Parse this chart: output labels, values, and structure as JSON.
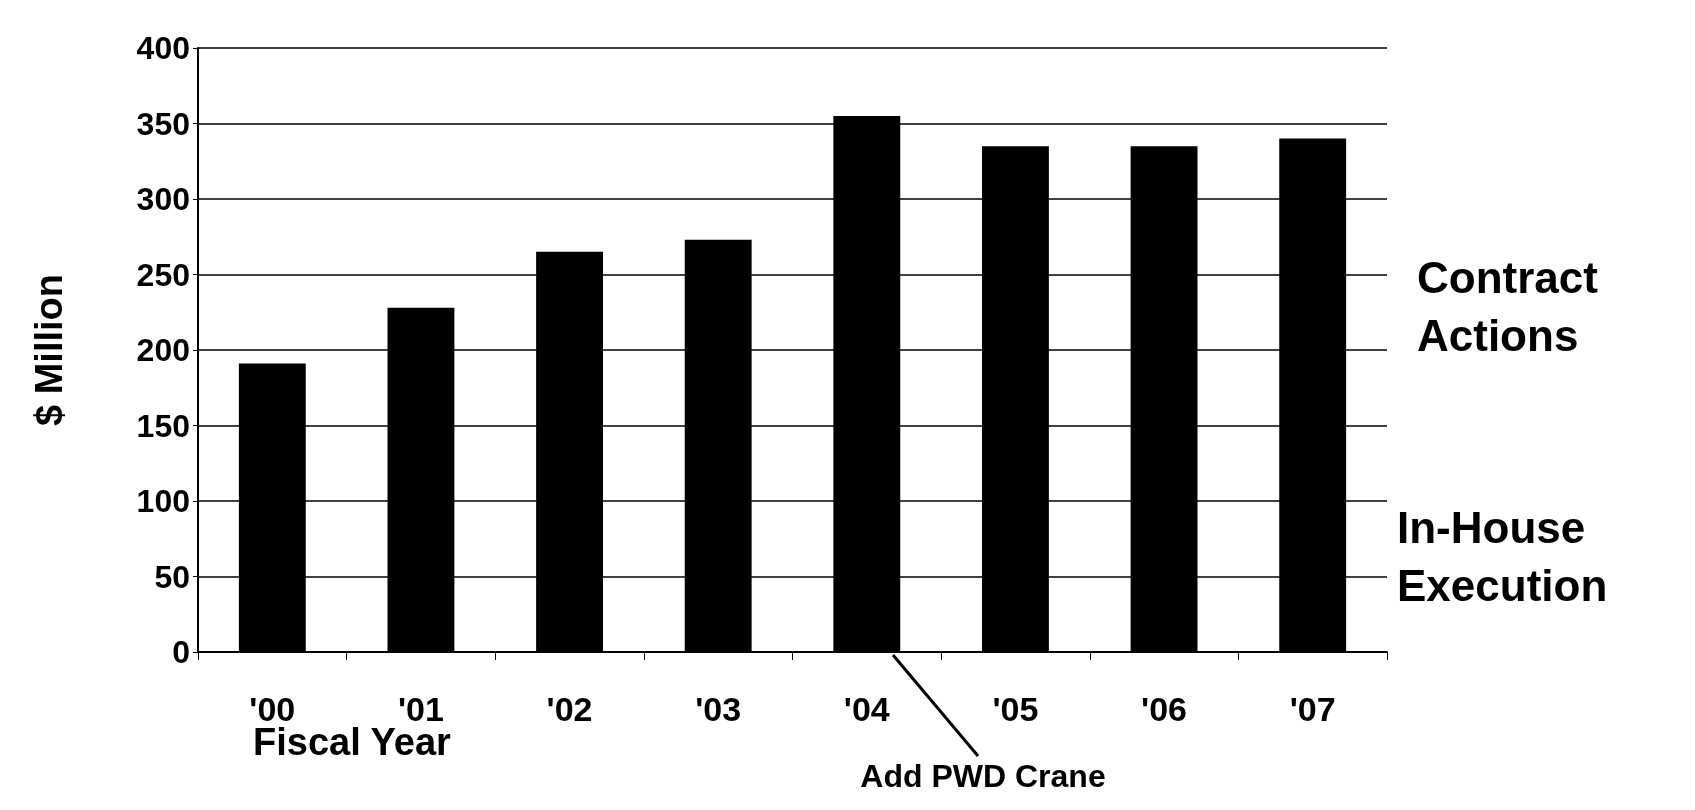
{
  "chart_data": {
    "type": "bar",
    "categories": [
      "'00",
      "'01",
      "'02",
      "'03",
      "'04",
      "'05",
      "'06",
      "'07"
    ],
    "values": [
      191,
      228,
      265,
      273,
      355,
      335,
      335,
      340
    ],
    "color": "#000000",
    "xlabel": "Fiscal Year",
    "ylabel": "$ Million",
    "ylim": [
      0,
      400
    ],
    "yticks": [
      0,
      50,
      100,
      150,
      200,
      250,
      300,
      350,
      400
    ],
    "grid": "y",
    "annotations": [
      "Contract Actions",
      "In-House Execution",
      "Add PWD Crane"
    ]
  }
}
